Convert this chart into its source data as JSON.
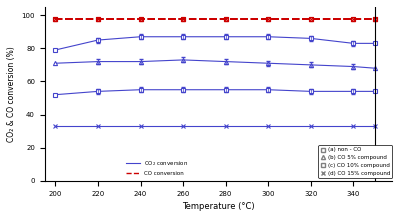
{
  "temperature": [
    200,
    220,
    240,
    260,
    280,
    300,
    320,
    340,
    350
  ],
  "co2_non_co": [
    79,
    85,
    87,
    87,
    87,
    87,
    86,
    83,
    83
  ],
  "co2_5pct": [
    71,
    72,
    72,
    73,
    72,
    71,
    70,
    69,
    68
  ],
  "co2_10pct": [
    52,
    54,
    55,
    55,
    55,
    55,
    54,
    54,
    54
  ],
  "co2_15pct": [
    33,
    33,
    33,
    33,
    33,
    33,
    33,
    33,
    33
  ],
  "co_non_co": [
    98,
    98,
    98,
    98,
    98,
    98,
    98,
    98,
    98
  ],
  "co_5pct": [
    98,
    98,
    98,
    98,
    98,
    98,
    98,
    98,
    98
  ],
  "co_10pct": [
    98,
    98,
    98,
    98,
    98,
    98,
    98,
    98,
    98
  ],
  "co_15pct": [
    98,
    98,
    98,
    98,
    98,
    98,
    98,
    98,
    98
  ],
  "co2_color": "#4444cc",
  "co_color": "#cc0000",
  "ylabel": "CO₂ & CO conversion (%)",
  "xlabel": "Temperature (°C)",
  "xlim": [
    195,
    358
  ],
  "ylim": [
    0,
    105
  ],
  "yticks": [
    0,
    20,
    40,
    60,
    80,
    100
  ],
  "xticks": [
    200,
    220,
    240,
    260,
    280,
    300,
    320,
    340
  ]
}
